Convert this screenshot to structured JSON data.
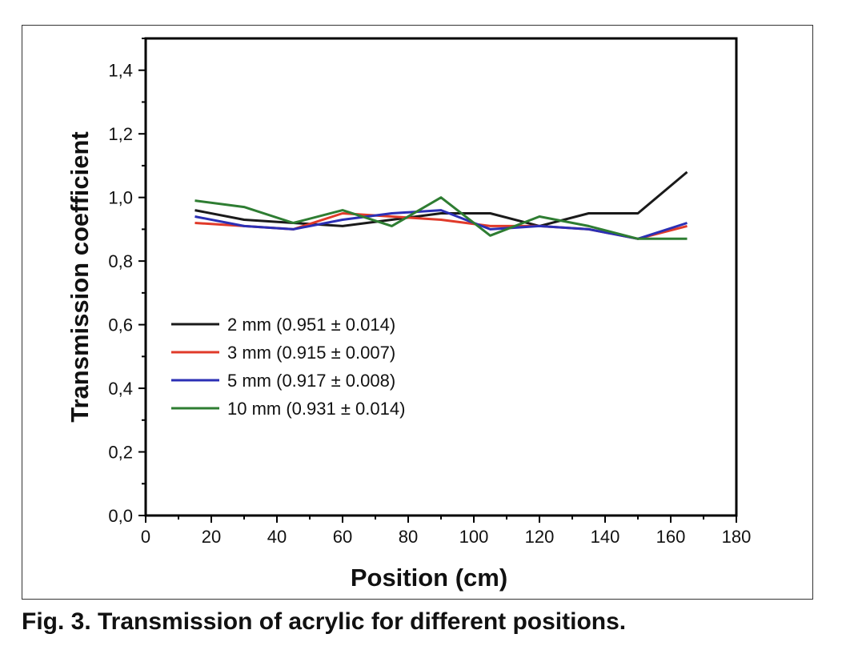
{
  "caption": "Fig. 3. Transmission of acrylic for different positions.",
  "chart_data": {
    "type": "line",
    "xlabel": "Position (cm)",
    "ylabel": "Transmission coefficient",
    "xlim": [
      0,
      180
    ],
    "ylim": [
      0.0,
      1.5
    ],
    "xticks": [
      0,
      20,
      40,
      60,
      80,
      100,
      120,
      140,
      160,
      180
    ],
    "xtick_labels": [
      "0",
      "20",
      "40",
      "60",
      "80",
      "100",
      "120",
      "140",
      "160",
      "180"
    ],
    "yticks": [
      0.0,
      0.2,
      0.4,
      0.6,
      0.8,
      1.0,
      1.2,
      1.4
    ],
    "ytick_labels": [
      "0,0",
      "0,2",
      "0,4",
      "0,6",
      "0,8",
      "1,0",
      "1,2",
      "1,4"
    ],
    "grid": false,
    "legend_position": "center-left",
    "series": [
      {
        "name": "2 mm (0.951 ± 0.014)",
        "color": "#1a1a1a",
        "x": [
          15,
          30,
          45,
          60,
          75,
          90,
          105,
          120,
          135,
          150,
          165
        ],
        "y": [
          0.96,
          0.93,
          0.92,
          0.91,
          0.93,
          0.95,
          0.95,
          0.91,
          0.95,
          0.95,
          1.08
        ]
      },
      {
        "name": "3 mm (0.915 ± 0.007)",
        "color": "#e03a2a",
        "x": [
          15,
          30,
          45,
          60,
          75,
          90,
          105,
          120,
          135,
          150,
          165
        ],
        "y": [
          0.92,
          0.91,
          0.9,
          0.95,
          0.94,
          0.93,
          0.91,
          0.91,
          0.9,
          0.87,
          0.91
        ]
      },
      {
        "name": "5 mm (0.917 ± 0.008)",
        "color": "#2b2fb5",
        "x": [
          15,
          30,
          45,
          60,
          75,
          90,
          105,
          120,
          135,
          150,
          165
        ],
        "y": [
          0.94,
          0.91,
          0.9,
          0.93,
          0.95,
          0.96,
          0.9,
          0.91,
          0.9,
          0.87,
          0.92
        ]
      },
      {
        "name": "10 mm (0.931 ± 0.014)",
        "color": "#2e7d32",
        "x": [
          15,
          30,
          45,
          60,
          75,
          90,
          105,
          120,
          135,
          150,
          165
        ],
        "y": [
          0.99,
          0.97,
          0.92,
          0.96,
          0.91,
          1.0,
          0.88,
          0.94,
          0.91,
          0.87,
          0.87
        ]
      }
    ]
  }
}
